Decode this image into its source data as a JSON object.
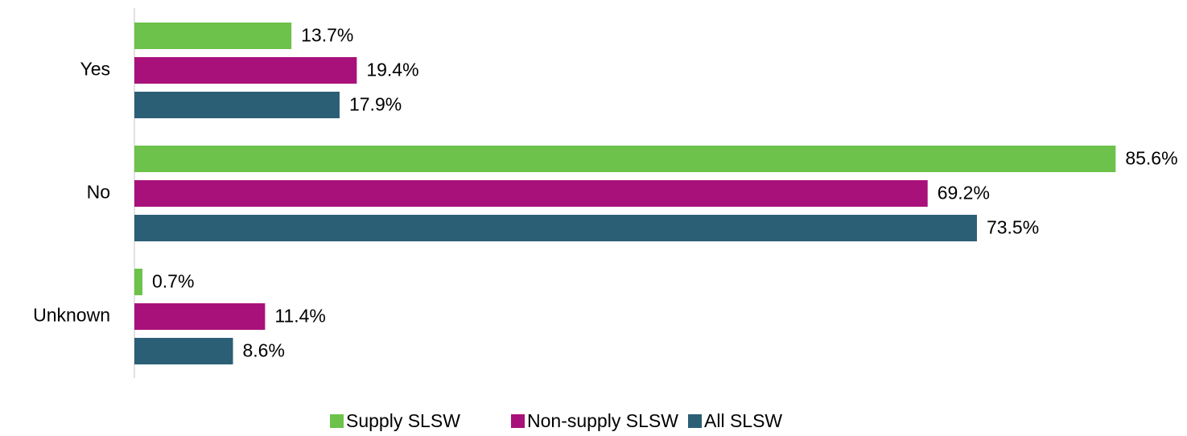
{
  "chart_data": {
    "type": "bar",
    "orientation": "horizontal",
    "categories": [
      "Yes",
      "No",
      "Unknown"
    ],
    "series": [
      {
        "name": "Supply SLSW",
        "color": "#6cc24a",
        "values": [
          13.7,
          85.6,
          0.7
        ],
        "value_labels": [
          "13.7%",
          "85.6%",
          "0.7%"
        ]
      },
      {
        "name": "Non-supply SLSW",
        "color": "#a8117a",
        "values": [
          19.4,
          69.2,
          11.4
        ],
        "value_labels": [
          "19.4%",
          "69.2%",
          "11.4%"
        ]
      },
      {
        "name": "All SLSW",
        "color": "#2b5f75",
        "values": [
          17.9,
          73.5,
          8.6
        ],
        "value_labels": [
          "17.9%",
          "73.5%",
          "8.6%"
        ]
      }
    ],
    "xlim": [
      0,
      90
    ],
    "legend": "bottom"
  }
}
